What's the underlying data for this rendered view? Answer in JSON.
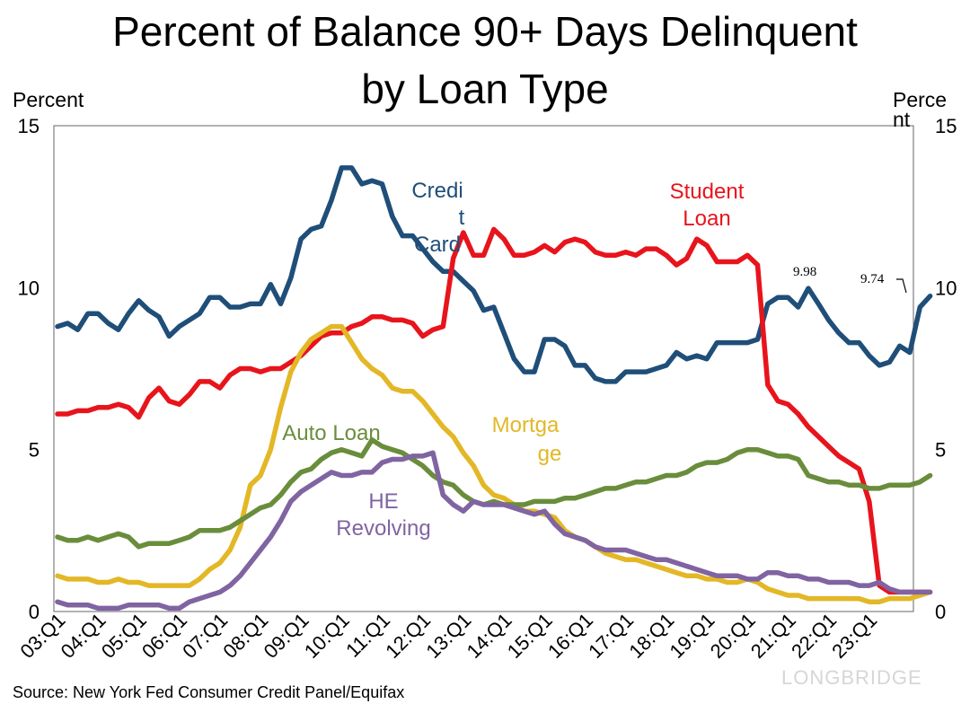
{
  "chart_data": {
    "type": "line",
    "title_lines": [
      "Percent of Balance 90+ Days Delinquent",
      "by Loan Type"
    ],
    "ylabel_left": "Percent",
    "ylabel_right": "Perce nt",
    "ylim": [
      0,
      15
    ],
    "yticks": [
      0,
      5,
      10,
      15
    ],
    "xlabels": [
      "03:Q1",
      "04:Q1",
      "05:Q1",
      "06:Q1",
      "07:Q1",
      "08:Q1",
      "09:Q1",
      "10:Q1",
      "11:Q1",
      "12:Q1",
      "13:Q1",
      "14:Q1",
      "15:Q1",
      "16:Q1",
      "17:Q1",
      "18:Q1",
      "19:Q1",
      "20:Q1",
      "21:Q1",
      "22:Q1",
      "23:Q1"
    ],
    "n_points": 85,
    "series": [
      {
        "key": "credit_card",
        "label_lines": [
          "Credi",
          "t",
          "Card"
        ],
        "color": "#1f4e79",
        "values": [
          8.8,
          8.9,
          8.7,
          9.2,
          9.2,
          8.9,
          8.7,
          9.2,
          9.6,
          9.3,
          9.1,
          8.5,
          8.8,
          9.0,
          9.2,
          9.7,
          9.7,
          9.4,
          9.4,
          9.5,
          9.5,
          10.1,
          9.5,
          10.3,
          11.5,
          11.8,
          11.9,
          12.7,
          13.7,
          13.7,
          13.2,
          13.3,
          13.2,
          12.2,
          11.6,
          11.6,
          11.2,
          10.8,
          10.5,
          10.5,
          10.2,
          9.9,
          9.3,
          9.4,
          8.6,
          7.8,
          7.4,
          7.4,
          8.4,
          8.4,
          8.2,
          7.6,
          7.6,
          7.2,
          7.1,
          7.1,
          7.4,
          7.4,
          7.4,
          7.5,
          7.6,
          8.0,
          7.8,
          7.9,
          7.8,
          8.3,
          8.3,
          8.3,
          8.3,
          8.4,
          9.5,
          9.7,
          9.7,
          9.4,
          9.98,
          9.5,
          9.0,
          8.6,
          8.3,
          8.3,
          7.9,
          7.6,
          7.7,
          8.2,
          8.0,
          9.4,
          9.74
        ]
      },
      {
        "key": "student_loan",
        "label_lines": [
          "Student",
          "Loan"
        ],
        "color": "#e8141c",
        "values": [
          6.1,
          6.1,
          6.2,
          6.2,
          6.3,
          6.3,
          6.4,
          6.3,
          6.0,
          6.6,
          6.9,
          6.5,
          6.4,
          6.7,
          7.1,
          7.1,
          6.9,
          7.3,
          7.5,
          7.5,
          7.4,
          7.5,
          7.5,
          7.7,
          7.9,
          8.2,
          8.5,
          8.6,
          8.6,
          8.8,
          8.9,
          9.1,
          9.1,
          9.0,
          9.0,
          8.9,
          8.5,
          8.7,
          8.8,
          10.9,
          11.7,
          11.0,
          11.0,
          11.8,
          11.5,
          11.0,
          11.0,
          11.1,
          11.3,
          11.1,
          11.4,
          11.5,
          11.4,
          11.1,
          11.0,
          11.0,
          11.1,
          11.0,
          11.2,
          11.2,
          11.0,
          10.7,
          10.9,
          11.5,
          11.3,
          10.8,
          10.8,
          10.8,
          11.0,
          10.7,
          7.0,
          6.5,
          6.4,
          6.1,
          5.7,
          5.4,
          5.1,
          4.8,
          4.6,
          4.4,
          3.4,
          0.8,
          0.6,
          0.6,
          0.6,
          0.6,
          0.6
        ]
      },
      {
        "key": "mortgage",
        "label_lines": [
          "Mortga",
          "ge"
        ],
        "color": "#e3b726",
        "values": [
          1.1,
          1.0,
          1.0,
          1.0,
          0.9,
          0.9,
          1.0,
          0.9,
          0.9,
          0.8,
          0.8,
          0.8,
          0.8,
          0.8,
          1.0,
          1.3,
          1.5,
          1.9,
          2.6,
          3.9,
          4.2,
          5.0,
          6.3,
          7.4,
          8.0,
          8.4,
          8.6,
          8.8,
          8.8,
          8.3,
          7.8,
          7.5,
          7.3,
          6.9,
          6.8,
          6.8,
          6.5,
          6.1,
          5.7,
          5.4,
          4.9,
          4.5,
          3.9,
          3.6,
          3.5,
          3.3,
          3.1,
          3.1,
          3.0,
          2.9,
          2.5,
          2.3,
          2.2,
          2.0,
          1.8,
          1.7,
          1.6,
          1.6,
          1.5,
          1.4,
          1.3,
          1.2,
          1.1,
          1.1,
          1.0,
          1.0,
          0.9,
          0.9,
          1.0,
          0.9,
          0.7,
          0.6,
          0.5,
          0.5,
          0.4,
          0.4,
          0.4,
          0.4,
          0.4,
          0.4,
          0.3,
          0.3,
          0.4,
          0.4,
          0.4,
          0.5,
          0.6
        ]
      },
      {
        "key": "auto_loan",
        "label_lines": [
          "Auto Loan"
        ],
        "color": "#6a8d3c",
        "values": [
          2.3,
          2.2,
          2.2,
          2.3,
          2.2,
          2.3,
          2.4,
          2.3,
          2.0,
          2.1,
          2.1,
          2.1,
          2.2,
          2.3,
          2.5,
          2.5,
          2.5,
          2.6,
          2.8,
          3.0,
          3.2,
          3.3,
          3.6,
          4.0,
          4.3,
          4.4,
          4.7,
          4.9,
          5.0,
          4.9,
          4.8,
          5.3,
          5.1,
          5.0,
          4.9,
          4.7,
          4.5,
          4.2,
          4.0,
          3.9,
          3.6,
          3.4,
          3.3,
          3.4,
          3.3,
          3.3,
          3.3,
          3.4,
          3.4,
          3.4,
          3.5,
          3.5,
          3.6,
          3.7,
          3.8,
          3.8,
          3.9,
          4.0,
          4.0,
          4.1,
          4.2,
          4.2,
          4.3,
          4.5,
          4.6,
          4.6,
          4.7,
          4.9,
          5.0,
          5.0,
          4.9,
          4.8,
          4.8,
          4.7,
          4.2,
          4.1,
          4.0,
          4.0,
          3.9,
          3.9,
          3.8,
          3.8,
          3.9,
          3.9,
          3.9,
          4.0,
          4.2
        ]
      },
      {
        "key": "he_revolving",
        "label_lines": [
          "HE",
          "Revolving"
        ],
        "color": "#8064a2",
        "values": [
          0.3,
          0.2,
          0.2,
          0.2,
          0.1,
          0.1,
          0.1,
          0.2,
          0.2,
          0.2,
          0.2,
          0.1,
          0.1,
          0.3,
          0.4,
          0.5,
          0.6,
          0.8,
          1.1,
          1.5,
          1.9,
          2.3,
          2.8,
          3.4,
          3.7,
          3.9,
          4.1,
          4.3,
          4.2,
          4.2,
          4.3,
          4.3,
          4.6,
          4.7,
          4.7,
          4.8,
          4.8,
          4.9,
          3.6,
          3.3,
          3.1,
          3.4,
          3.3,
          3.3,
          3.3,
          3.2,
          3.1,
          3.0,
          3.1,
          2.7,
          2.4,
          2.3,
          2.2,
          2.0,
          1.9,
          1.9,
          1.9,
          1.8,
          1.7,
          1.6,
          1.6,
          1.5,
          1.4,
          1.3,
          1.2,
          1.1,
          1.1,
          1.1,
          1.0,
          1.0,
          1.2,
          1.2,
          1.1,
          1.1,
          1.0,
          1.0,
          0.9,
          0.9,
          0.9,
          0.8,
          0.8,
          0.9,
          0.7,
          0.6,
          0.6,
          0.6,
          0.6
        ]
      }
    ],
    "annotations": [
      {
        "text": "9.98",
        "series": "credit_card"
      },
      {
        "text": "9.74",
        "series": "credit_card"
      }
    ]
  },
  "source": "Source: New York Fed Consumer Credit Panel/Equifax",
  "watermark": "LONGBRIDGE"
}
